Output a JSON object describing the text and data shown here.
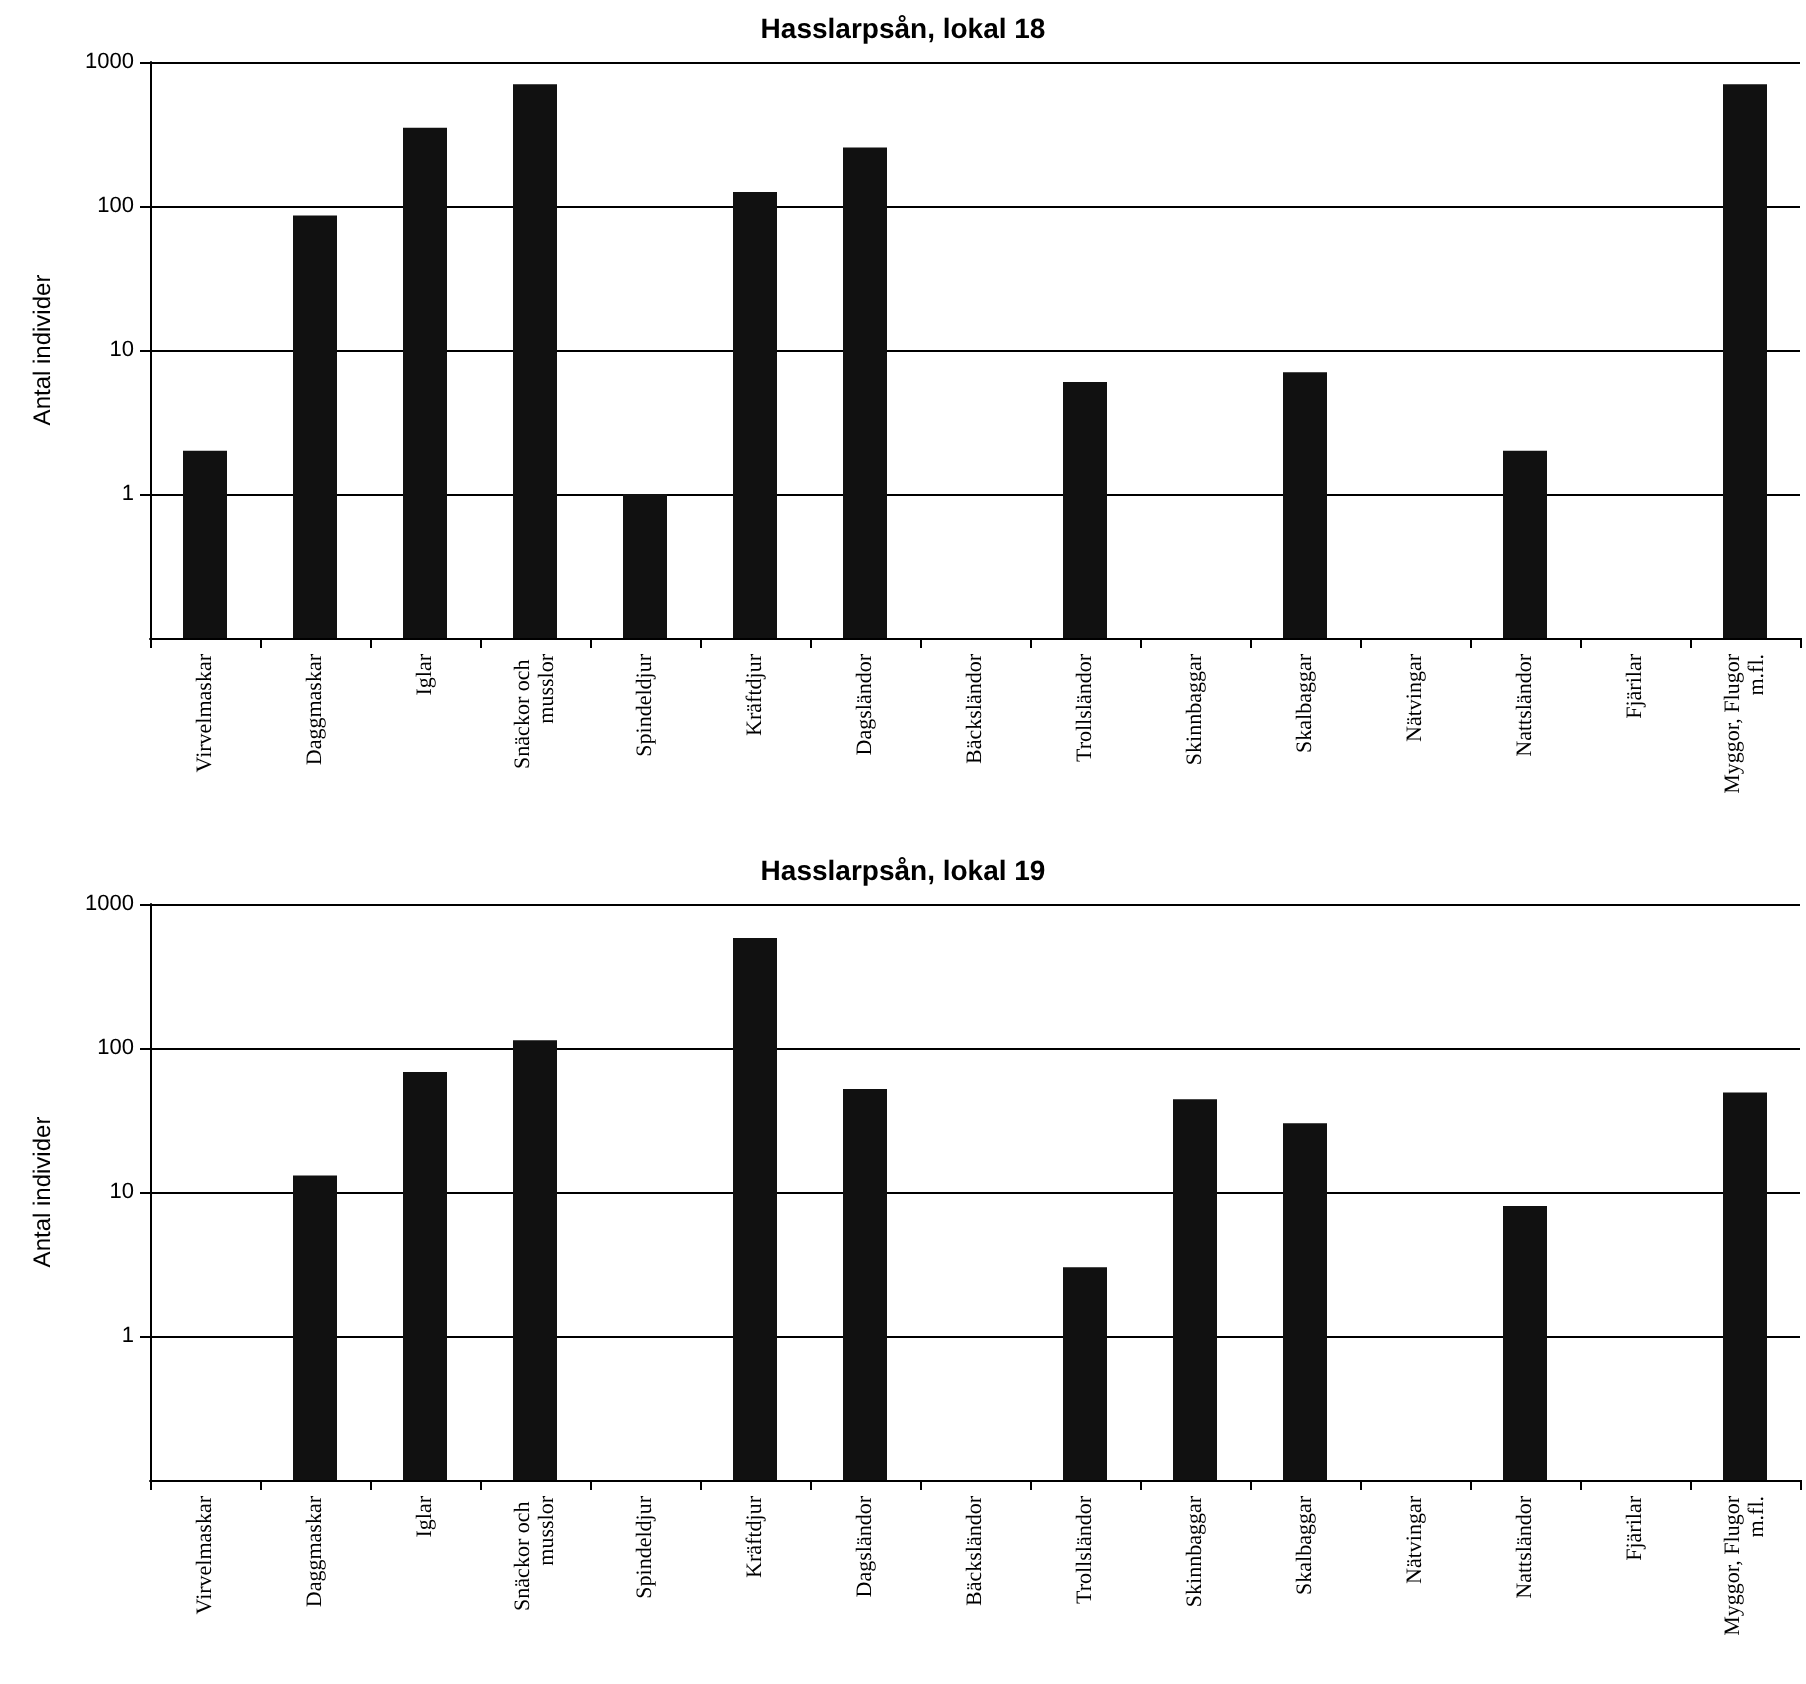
{
  "chart_data": [
    {
      "type": "bar",
      "title": "Hasslarpsån, lokal 18",
      "ylabel": "Antal individer",
      "categories": [
        "Virvelmaskar",
        "Daggmaskar",
        "Iglar",
        "Snäckor och musslor",
        "Spindeldjur",
        "Kräftdjur",
        "Dagsländor",
        "Bäcksländor",
        "Trollsländor",
        "Skinnbaggar",
        "Skalbaggar",
        "Nätvingar",
        "Nattsländor",
        "Fjärilar",
        "Myggor, Flugor m.fl."
      ],
      "values": [
        2,
        86,
        350,
        700,
        1,
        125,
        255,
        null,
        6,
        null,
        7,
        null,
        2,
        null,
        700
      ],
      "color": "#111111",
      "log": "y",
      "ylim": [
        0.1,
        1000
      ],
      "yticks": [
        1,
        10,
        100,
        1000
      ],
      "grid": "y"
    },
    {
      "type": "bar",
      "title": "Hasslarpsån, lokal 19",
      "ylabel": "Antal individer",
      "categories": [
        "Virvelmaskar",
        "Daggmaskar",
        "Iglar",
        "Snäckor och musslor",
        "Spindeldjur",
        "Kräftdjur",
        "Dagsländor",
        "Bäcksländor",
        "Trollsländor",
        "Skinnbaggar",
        "Skalbaggar",
        "Nätvingar",
        "Nattsländor",
        "Fjärilar",
        "Myggor, Flugor m.fl."
      ],
      "values": [
        null,
        13,
        68,
        113,
        null,
        580,
        52,
        null,
        3,
        44,
        30,
        null,
        8,
        null,
        49
      ],
      "color": "#111111",
      "log": "y",
      "ylim": [
        0.1,
        1000
      ],
      "yticks": [
        1,
        10,
        100,
        1000
      ],
      "grid": "y"
    }
  ]
}
